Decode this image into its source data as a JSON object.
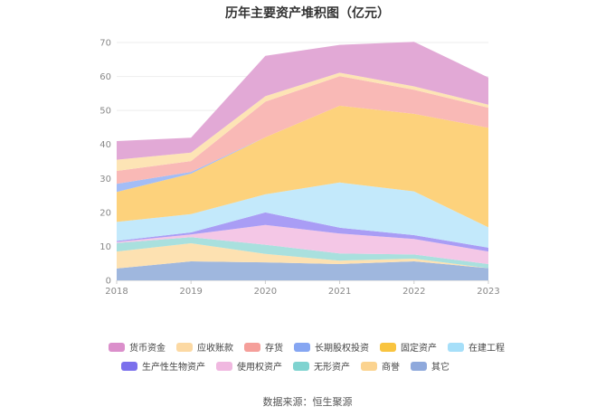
{
  "title": "历年主要资产堆积图（亿元）",
  "source_label": "数据来源：恒生聚源",
  "chart_data": {
    "type": "area",
    "stacked": true,
    "title": "历年主要资产堆积图（亿元）",
    "categories": [
      "2018",
      "2019",
      "2020",
      "2021",
      "2022",
      "2023"
    ],
    "ylim": [
      0,
      70
    ],
    "yticks": [
      0,
      10,
      20,
      30,
      40,
      50,
      60,
      70
    ],
    "grid": true,
    "legend_position": "bottom",
    "series": [
      {
        "name": "其它",
        "color": "#9fb7de",
        "values": [
          3.5,
          5.6,
          5.3,
          4.8,
          5.6,
          3.6
        ]
      },
      {
        "name": "商誉",
        "color": "#fde1b1",
        "values": [
          5.0,
          5.3,
          2.5,
          1.0,
          0.8,
          0.0
        ]
      },
      {
        "name": "无形资产",
        "color": "#a9e0de",
        "values": [
          2.5,
          1.8,
          2.7,
          2.1,
          1.2,
          1.2
        ]
      },
      {
        "name": "使用权资产",
        "color": "#f4c7e6",
        "values": [
          0.3,
          0.8,
          5.8,
          5.9,
          4.6,
          3.7
        ]
      },
      {
        "name": "生产性生物资产",
        "color": "#a99df5",
        "values": [
          0.3,
          0.6,
          3.7,
          1.7,
          1.1,
          1.1
        ]
      },
      {
        "name": "在建工程",
        "color": "#c3e9fb",
        "values": [
          5.6,
          5.4,
          5.3,
          13.3,
          12.9,
          6.0
        ]
      },
      {
        "name": "固定资产",
        "color": "#fdd27c",
        "values": [
          8.8,
          11.9,
          16.8,
          22.6,
          22.8,
          29.3
        ]
      },
      {
        "name": "长期股权投资",
        "color": "#a3bdf6",
        "values": [
          2.4,
          0.5,
          0.0,
          0.0,
          0.0,
          0.0
        ]
      },
      {
        "name": "存货",
        "color": "#f9b9b6",
        "values": [
          3.8,
          3.2,
          10.5,
          8.7,
          7.1,
          5.9
        ]
      },
      {
        "name": "应收账款",
        "color": "#fde4b5",
        "values": [
          3.3,
          2.5,
          1.6,
          1.0,
          1.0,
          0.9
        ]
      },
      {
        "name": "货币资金",
        "color": "#e2a9d6",
        "values": [
          5.5,
          4.4,
          11.9,
          8.2,
          13.1,
          8.0
        ]
      }
    ]
  },
  "legend": [
    [
      {
        "name": "货币资金",
        "color": "#db8fcb"
      },
      {
        "name": "应收账款",
        "color": "#fcd9a3"
      },
      {
        "name": "存货",
        "color": "#f59f9a"
      },
      {
        "name": "长期股权投资",
        "color": "#86a6f2"
      },
      {
        "name": "固定资产",
        "color": "#f9c43f"
      },
      {
        "name": "在建工程",
        "color": "#a6dff9"
      }
    ],
    [
      {
        "name": "生产性生物资产",
        "color": "#7b70ec"
      },
      {
        "name": "使用权资产",
        "color": "#f0b8e0"
      },
      {
        "name": "无形资产",
        "color": "#7fd3d0"
      },
      {
        "name": "商誉",
        "color": "#fbd38f"
      },
      {
        "name": "其它",
        "color": "#8fa9dc"
      }
    ]
  ]
}
